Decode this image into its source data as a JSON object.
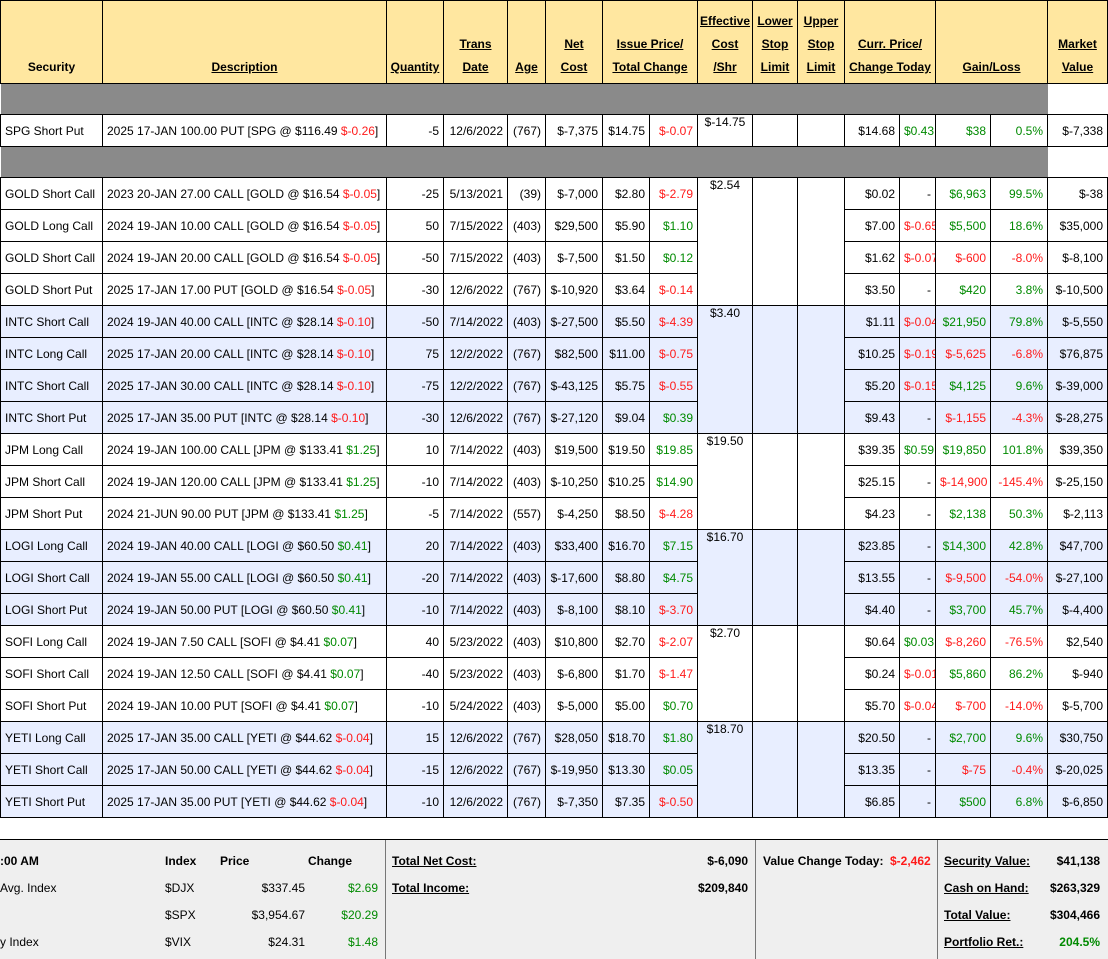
{
  "headers": {
    "security": [
      "Security"
    ],
    "description": [
      "Description"
    ],
    "quantity": [
      "Quantity"
    ],
    "trans_date": [
      "Trans",
      "Date"
    ],
    "age": [
      "Age"
    ],
    "net_cost": [
      "Net",
      "Cost"
    ],
    "issue_price": [
      "Issue Price/",
      "Total Change"
    ],
    "effective_cost": [
      "Effective",
      "Cost",
      "/Shr"
    ],
    "lower_stop": [
      "Lower",
      "Stop",
      "Limit"
    ],
    "upper_stop": [
      "Upper",
      "Stop",
      "Limit"
    ],
    "curr_price": [
      "Curr. Price/",
      "Change Today"
    ],
    "gain_loss": [
      "Gain/Loss"
    ],
    "market_value": [
      "Market",
      "Value"
    ]
  },
  "groups": [
    {
      "effective_cost": "$-14.75",
      "shaded": false,
      "rows": [
        {
          "security": "SPG Short Put",
          "desc": "2025 17-JAN 100.00 PUT [SPG @ $116.49",
          "desc_chg": "$-0.26",
          "desc_chg_sign": "neg",
          "qty": "-5",
          "date": "12/6/2022",
          "age": "(767)",
          "net_cost": "$-7,375",
          "issue": "$14.75",
          "total_chg": "$-0.07",
          "total_chg_sign": "neg",
          "curr": "$14.68",
          "chg_today": "$0.43",
          "chg_today_sign": "pos",
          "gain": "$38",
          "gain_sign": "pos",
          "gain_pct": "0.5%",
          "gain_pct_sign": "pos",
          "mv": "$-7,338"
        }
      ]
    },
    {
      "effective_cost": "$2.54",
      "shaded": false,
      "rows": [
        {
          "security": "GOLD Short Call",
          "desc": "2023 20-JAN 27.00 CALL [GOLD @ $16.54",
          "desc_chg": "$-0.05",
          "desc_chg_sign": "neg",
          "qty": "-25",
          "date": "5/13/2021",
          "age": "(39)",
          "net_cost": "$-7,000",
          "issue": "$2.80",
          "total_chg": "$-2.79",
          "total_chg_sign": "neg",
          "curr": "$0.02",
          "chg_today": "-",
          "chg_today_sign": "neu",
          "gain": "$6,963",
          "gain_sign": "pos",
          "gain_pct": "99.5%",
          "gain_pct_sign": "pos",
          "mv": "$-38"
        },
        {
          "security": "GOLD Long Call",
          "desc": "2024 19-JAN 10.00 CALL [GOLD @ $16.54",
          "desc_chg": "$-0.05",
          "desc_chg_sign": "neg",
          "qty": "50",
          "date": "7/15/2022",
          "age": "(403)",
          "net_cost": "$29,500",
          "issue": "$5.90",
          "total_chg": "$1.10",
          "total_chg_sign": "pos",
          "curr": "$7.00",
          "chg_today": "$-0.65",
          "chg_today_sign": "neg",
          "gain": "$5,500",
          "gain_sign": "pos",
          "gain_pct": "18.6%",
          "gain_pct_sign": "pos",
          "mv": "$35,000"
        },
        {
          "security": "GOLD Short Call",
          "desc": "2024 19-JAN 20.00 CALL [GOLD @ $16.54",
          "desc_chg": "$-0.05",
          "desc_chg_sign": "neg",
          "qty": "-50",
          "date": "7/15/2022",
          "age": "(403)",
          "net_cost": "$-7,500",
          "issue": "$1.50",
          "total_chg": "$0.12",
          "total_chg_sign": "pos",
          "curr": "$1.62",
          "chg_today": "$-0.07",
          "chg_today_sign": "neg",
          "gain": "$-600",
          "gain_sign": "neg",
          "gain_pct": "-8.0%",
          "gain_pct_sign": "neg",
          "mv": "$-8,100"
        },
        {
          "security": "GOLD Short Put",
          "desc": "2025 17-JAN 17.00 PUT [GOLD @ $16.54",
          "desc_chg": "$-0.05",
          "desc_chg_sign": "neg",
          "qty": "-30",
          "date": "12/6/2022",
          "age": "(767)",
          "net_cost": "$-10,920",
          "issue": "$3.64",
          "total_chg": "$-0.14",
          "total_chg_sign": "neg",
          "curr": "$3.50",
          "chg_today": "-",
          "chg_today_sign": "neu",
          "gain": "$420",
          "gain_sign": "pos",
          "gain_pct": "3.8%",
          "gain_pct_sign": "pos",
          "mv": "$-10,500"
        }
      ]
    },
    {
      "effective_cost": "$3.40",
      "shaded": true,
      "rows": [
        {
          "security": "INTC Short Call",
          "desc": "2024 19-JAN 40.00 CALL [INTC @ $28.14",
          "desc_chg": "$-0.10",
          "desc_chg_sign": "neg",
          "qty": "-50",
          "date": "7/14/2022",
          "age": "(403)",
          "net_cost": "$-27,500",
          "issue": "$5.50",
          "total_chg": "$-4.39",
          "total_chg_sign": "neg",
          "curr": "$1.11",
          "chg_today": "$-0.04",
          "chg_today_sign": "neg",
          "gain": "$21,950",
          "gain_sign": "pos",
          "gain_pct": "79.8%",
          "gain_pct_sign": "pos",
          "mv": "$-5,550"
        },
        {
          "security": "INTC Long Call",
          "desc": "2025 17-JAN 20.00 CALL [INTC @ $28.14",
          "desc_chg": "$-0.10",
          "desc_chg_sign": "neg",
          "qty": "75",
          "date": "12/2/2022",
          "age": "(767)",
          "net_cost": "$82,500",
          "issue": "$11.00",
          "total_chg": "$-0.75",
          "total_chg_sign": "neg",
          "curr": "$10.25",
          "chg_today": "$-0.19",
          "chg_today_sign": "neg",
          "gain": "$-5,625",
          "gain_sign": "neg",
          "gain_pct": "-6.8%",
          "gain_pct_sign": "neg",
          "mv": "$76,875"
        },
        {
          "security": "INTC Short Call",
          "desc": "2025 17-JAN 30.00 CALL [INTC @ $28.14",
          "desc_chg": "$-0.10",
          "desc_chg_sign": "neg",
          "qty": "-75",
          "date": "12/2/2022",
          "age": "(767)",
          "net_cost": "$-43,125",
          "issue": "$5.75",
          "total_chg": "$-0.55",
          "total_chg_sign": "neg",
          "curr": "$5.20",
          "chg_today": "$-0.15",
          "chg_today_sign": "neg",
          "gain": "$4,125",
          "gain_sign": "pos",
          "gain_pct": "9.6%",
          "gain_pct_sign": "pos",
          "mv": "$-39,000"
        },
        {
          "security": "INTC Short Put",
          "desc": "2025 17-JAN 35.00 PUT [INTC @ $28.14",
          "desc_chg": "$-0.10",
          "desc_chg_sign": "neg",
          "qty": "-30",
          "date": "12/6/2022",
          "age": "(767)",
          "net_cost": "$-27,120",
          "issue": "$9.04",
          "total_chg": "$0.39",
          "total_chg_sign": "pos",
          "curr": "$9.43",
          "chg_today": "-",
          "chg_today_sign": "neu",
          "gain": "$-1,155",
          "gain_sign": "neg",
          "gain_pct": "-4.3%",
          "gain_pct_sign": "neg",
          "mv": "$-28,275"
        }
      ]
    },
    {
      "effective_cost": "$19.50",
      "shaded": false,
      "rows": [
        {
          "security": "JPM Long Call",
          "desc": "2024 19-JAN 100.00 CALL [JPM @ $133.41",
          "desc_chg": "$1.25",
          "desc_chg_sign": "pos",
          "qty": "10",
          "date": "7/14/2022",
          "age": "(403)",
          "net_cost": "$19,500",
          "issue": "$19.50",
          "total_chg": "$19.85",
          "total_chg_sign": "pos",
          "curr": "$39.35",
          "chg_today": "$0.59",
          "chg_today_sign": "pos",
          "gain": "$19,850",
          "gain_sign": "pos",
          "gain_pct": "101.8%",
          "gain_pct_sign": "pos",
          "mv": "$39,350"
        },
        {
          "security": "JPM Short Call",
          "desc": "2024 19-JAN 120.00 CALL [JPM @ $133.41",
          "desc_chg": "$1.25",
          "desc_chg_sign": "pos",
          "qty": "-10",
          "date": "7/14/2022",
          "age": "(403)",
          "net_cost": "$-10,250",
          "issue": "$10.25",
          "total_chg": "$14.90",
          "total_chg_sign": "pos",
          "curr": "$25.15",
          "chg_today": "-",
          "chg_today_sign": "neu",
          "gain": "$-14,900",
          "gain_sign": "neg",
          "gain_pct": "-145.4%",
          "gain_pct_sign": "neg",
          "mv": "$-25,150"
        },
        {
          "security": "JPM Short Put",
          "desc": "2024 21-JUN 90.00 PUT [JPM @ $133.41",
          "desc_chg": "$1.25",
          "desc_chg_sign": "pos",
          "qty": "-5",
          "date": "7/14/2022",
          "age": "(557)",
          "net_cost": "$-4,250",
          "issue": "$8.50",
          "total_chg": "$-4.28",
          "total_chg_sign": "neg",
          "curr": "$4.23",
          "chg_today": "-",
          "chg_today_sign": "neu",
          "gain": "$2,138",
          "gain_sign": "pos",
          "gain_pct": "50.3%",
          "gain_pct_sign": "pos",
          "mv": "$-2,113"
        }
      ]
    },
    {
      "effective_cost": "$16.70",
      "shaded": true,
      "rows": [
        {
          "security": "LOGI Long Call",
          "desc": "2024 19-JAN 40.00 CALL [LOGI @ $60.50",
          "desc_chg": "$0.41",
          "desc_chg_sign": "pos",
          "qty": "20",
          "date": "7/14/2022",
          "age": "(403)",
          "net_cost": "$33,400",
          "issue": "$16.70",
          "total_chg": "$7.15",
          "total_chg_sign": "pos",
          "curr": "$23.85",
          "chg_today": "-",
          "chg_today_sign": "neu",
          "gain": "$14,300",
          "gain_sign": "pos",
          "gain_pct": "42.8%",
          "gain_pct_sign": "pos",
          "mv": "$47,700"
        },
        {
          "security": "LOGI Short Call",
          "desc": "2024 19-JAN 55.00 CALL [LOGI @ $60.50",
          "desc_chg": "$0.41",
          "desc_chg_sign": "pos",
          "qty": "-20",
          "date": "7/14/2022",
          "age": "(403)",
          "net_cost": "$-17,600",
          "issue": "$8.80",
          "total_chg": "$4.75",
          "total_chg_sign": "pos",
          "curr": "$13.55",
          "chg_today": "-",
          "chg_today_sign": "neu",
          "gain": "$-9,500",
          "gain_sign": "neg",
          "gain_pct": "-54.0%",
          "gain_pct_sign": "neg",
          "mv": "$-27,100"
        },
        {
          "security": "LOGI Short Put",
          "desc": "2024 19-JAN 50.00 PUT [LOGI @ $60.50",
          "desc_chg": "$0.41",
          "desc_chg_sign": "pos",
          "qty": "-10",
          "date": "7/14/2022",
          "age": "(403)",
          "net_cost": "$-8,100",
          "issue": "$8.10",
          "total_chg": "$-3.70",
          "total_chg_sign": "neg",
          "curr": "$4.40",
          "chg_today": "-",
          "chg_today_sign": "neu",
          "gain": "$3,700",
          "gain_sign": "pos",
          "gain_pct": "45.7%",
          "gain_pct_sign": "pos",
          "mv": "$-4,400"
        }
      ]
    },
    {
      "effective_cost": "$2.70",
      "shaded": false,
      "rows": [
        {
          "security": "SOFI Long Call",
          "desc": "2024 19-JAN 7.50 CALL [SOFI @ $4.41",
          "desc_chg": "$0.07",
          "desc_chg_sign": "pos",
          "qty": "40",
          "date": "5/23/2022",
          "age": "(403)",
          "net_cost": "$10,800",
          "issue": "$2.70",
          "total_chg": "$-2.07",
          "total_chg_sign": "neg",
          "curr": "$0.64",
          "chg_today": "$0.03",
          "chg_today_sign": "pos",
          "gain": "$-8,260",
          "gain_sign": "neg",
          "gain_pct": "-76.5%",
          "gain_pct_sign": "neg",
          "mv": "$2,540"
        },
        {
          "security": "SOFI Short Call",
          "desc": "2024 19-JAN 12.50 CALL [SOFI @ $4.41",
          "desc_chg": "$0.07",
          "desc_chg_sign": "pos",
          "qty": "-40",
          "date": "5/23/2022",
          "age": "(403)",
          "net_cost": "$-6,800",
          "issue": "$1.70",
          "total_chg": "$-1.47",
          "total_chg_sign": "neg",
          "curr": "$0.24",
          "chg_today": "$-0.01",
          "chg_today_sign": "neg",
          "gain": "$5,860",
          "gain_sign": "pos",
          "gain_pct": "86.2%",
          "gain_pct_sign": "pos",
          "mv": "$-940"
        },
        {
          "security": "SOFI Short Put",
          "desc": "2024 19-JAN 10.00 PUT [SOFI @ $4.41",
          "desc_chg": "$0.07",
          "desc_chg_sign": "pos",
          "qty": "-10",
          "date": "5/24/2022",
          "age": "(403)",
          "net_cost": "$-5,000",
          "issue": "$5.00",
          "total_chg": "$0.70",
          "total_chg_sign": "pos",
          "curr": "$5.70",
          "chg_today": "$-0.04",
          "chg_today_sign": "neg",
          "gain": "$-700",
          "gain_sign": "neg",
          "gain_pct": "-14.0%",
          "gain_pct_sign": "neg",
          "mv": "$-5,700"
        }
      ]
    },
    {
      "effective_cost": "$18.70",
      "shaded": true,
      "rows": [
        {
          "security": "YETI Long Call",
          "desc": "2025 17-JAN 35.00 CALL [YETI @ $44.62",
          "desc_chg": "$-0.04",
          "desc_chg_sign": "neg",
          "qty": "15",
          "date": "12/6/2022",
          "age": "(767)",
          "net_cost": "$28,050",
          "issue": "$18.70",
          "total_chg": "$1.80",
          "total_chg_sign": "pos",
          "curr": "$20.50",
          "chg_today": "-",
          "chg_today_sign": "neu",
          "gain": "$2,700",
          "gain_sign": "pos",
          "gain_pct": "9.6%",
          "gain_pct_sign": "pos",
          "mv": "$30,750"
        },
        {
          "security": "YETI Short Call",
          "desc": "2025 17-JAN 50.00 CALL [YETI @ $44.62",
          "desc_chg": "$-0.04",
          "desc_chg_sign": "neg",
          "qty": "-15",
          "date": "12/6/2022",
          "age": "(767)",
          "net_cost": "$-19,950",
          "issue": "$13.30",
          "total_chg": "$0.05",
          "total_chg_sign": "pos",
          "curr": "$13.35",
          "chg_today": "-",
          "chg_today_sign": "neu",
          "gain": "$-75",
          "gain_sign": "neg",
          "gain_pct": "-0.4%",
          "gain_pct_sign": "neg",
          "mv": "$-20,025"
        },
        {
          "security": "YETI Short Put",
          "desc": "2025 17-JAN 35.00 PUT [YETI @ $44.62",
          "desc_chg": "$-0.04",
          "desc_chg_sign": "neg",
          "qty": "-10",
          "date": "12/6/2022",
          "age": "(767)",
          "net_cost": "$-7,350",
          "issue": "$7.35",
          "total_chg": "$-0.50",
          "total_chg_sign": "neg",
          "curr": "$6.85",
          "chg_today": "-",
          "chg_today_sign": "neu",
          "gain": "$500",
          "gain_sign": "pos",
          "gain_pct": "6.8%",
          "gain_pct_sign": "pos",
          "mv": "$-6,850"
        }
      ]
    }
  ],
  "summary": {
    "time_label": ":00 AM",
    "index_header": "Index",
    "price_header": "Price",
    "change_header": "Change",
    "indexes": [
      {
        "label": "Avg. Index",
        "symbol": "$DJX",
        "price": "$337.45",
        "change": "$2.69"
      },
      {
        "label": "",
        "symbol": "$SPX",
        "price": "$3,954.67",
        "change": "$20.29"
      },
      {
        "label": "y Index",
        "symbol": "$VIX",
        "price": "$24.31",
        "change": "$1.48"
      }
    ],
    "total_net_cost_label": "Total Net Cost:",
    "total_net_cost": "$-6,090",
    "total_income_label": "Total Income:",
    "total_income": "$209,840",
    "value_change_today_label": "Value Change Today:",
    "value_change_today": "$-2,462",
    "security_value_label": "Security Value:",
    "security_value": "$41,138",
    "cash_on_hand_label": "Cash on Hand:",
    "cash_on_hand": "$263,329",
    "total_value_label": "Total Value:",
    "total_value": "$304,466",
    "portfolio_ret_label": "Portfolio Ret.:",
    "portfolio_ret": "204.5%"
  },
  "colors": {
    "header_bg": "#ffe7a0",
    "gap_bg": "#8a8a8a",
    "row_shade": "#e8eeff",
    "positive": "#008a00",
    "negative": "#ff1a1a",
    "summary_bg": "#efefef"
  }
}
